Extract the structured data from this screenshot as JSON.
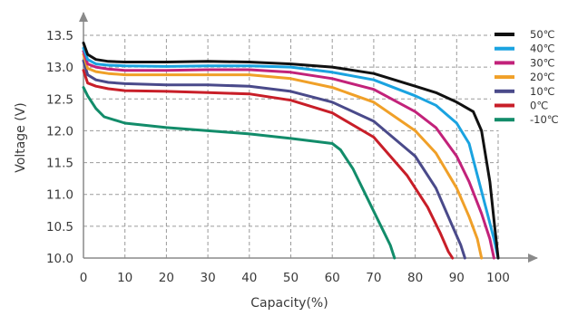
{
  "chart_data": {
    "type": "line",
    "title": "",
    "xlabel": "Capacity(%)",
    "ylabel": "Voltage (V)",
    "xlim": [
      0,
      100
    ],
    "ylim": [
      10.0,
      13.5
    ],
    "x_ticks": [
      "0",
      "10",
      "20",
      "30",
      "40",
      "50",
      "60",
      "70",
      "80",
      "90",
      "100"
    ],
    "y_ticks": [
      "10.0",
      "10.5",
      "11.0",
      "11.5",
      "12.0",
      "12.5",
      "13.0",
      "13.5"
    ],
    "grid": true,
    "legend_position": "top-right",
    "series": [
      {
        "name": "50℃",
        "color": "#111111",
        "points": [
          [
            0,
            13.38
          ],
          [
            1,
            13.2
          ],
          [
            3,
            13.12
          ],
          [
            6,
            13.09
          ],
          [
            10,
            13.08
          ],
          [
            20,
            13.08
          ],
          [
            30,
            13.09
          ],
          [
            40,
            13.08
          ],
          [
            50,
            13.05
          ],
          [
            60,
            13.0
          ],
          [
            70,
            12.9
          ],
          [
            80,
            12.7
          ],
          [
            85,
            12.6
          ],
          [
            90,
            12.45
          ],
          [
            94,
            12.3
          ],
          [
            96,
            12.0
          ],
          [
            98,
            11.2
          ],
          [
            99,
            10.6
          ],
          [
            100,
            10.0
          ]
        ]
      },
      {
        "name": "40℃",
        "color": "#1aa3e0",
        "points": [
          [
            0,
            13.3
          ],
          [
            1,
            13.12
          ],
          [
            3,
            13.05
          ],
          [
            6,
            13.03
          ],
          [
            10,
            13.02
          ],
          [
            20,
            13.01
          ],
          [
            30,
            13.02
          ],
          [
            40,
            13.02
          ],
          [
            50,
            13.0
          ],
          [
            60,
            12.92
          ],
          [
            70,
            12.8
          ],
          [
            80,
            12.55
          ],
          [
            85,
            12.4
          ],
          [
            90,
            12.12
          ],
          [
            93,
            11.8
          ],
          [
            95,
            11.3
          ],
          [
            97,
            10.8
          ],
          [
            99,
            10.3
          ],
          [
            100,
            10.0
          ]
        ]
      },
      {
        "name": "30℃",
        "color": "#c2227a",
        "points": [
          [
            0,
            13.25
          ],
          [
            1,
            13.05
          ],
          [
            3,
            13.0
          ],
          [
            6,
            12.97
          ],
          [
            10,
            12.95
          ],
          [
            20,
            12.95
          ],
          [
            30,
            12.96
          ],
          [
            40,
            12.96
          ],
          [
            50,
            12.92
          ],
          [
            60,
            12.82
          ],
          [
            70,
            12.65
          ],
          [
            80,
            12.3
          ],
          [
            85,
            12.05
          ],
          [
            90,
            11.6
          ],
          [
            93,
            11.2
          ],
          [
            96,
            10.7
          ],
          [
            98,
            10.3
          ],
          [
            99,
            10.0
          ]
        ]
      },
      {
        "name": "20℃",
        "color": "#f0a028",
        "points": [
          [
            0,
            13.2
          ],
          [
            1,
            12.98
          ],
          [
            3,
            12.93
          ],
          [
            6,
            12.9
          ],
          [
            10,
            12.88
          ],
          [
            20,
            12.88
          ],
          [
            30,
            12.88
          ],
          [
            40,
            12.88
          ],
          [
            50,
            12.82
          ],
          [
            60,
            12.68
          ],
          [
            70,
            12.45
          ],
          [
            80,
            12.0
          ],
          [
            85,
            11.65
          ],
          [
            90,
            11.1
          ],
          [
            93,
            10.65
          ],
          [
            95,
            10.3
          ],
          [
            96,
            10.0
          ]
        ]
      },
      {
        "name": "10℃",
        "color": "#4a4a8a",
        "points": [
          [
            0,
            13.1
          ],
          [
            1,
            12.88
          ],
          [
            3,
            12.8
          ],
          [
            6,
            12.76
          ],
          [
            10,
            12.74
          ],
          [
            20,
            12.72
          ],
          [
            30,
            12.72
          ],
          [
            40,
            12.7
          ],
          [
            50,
            12.62
          ],
          [
            60,
            12.45
          ],
          [
            70,
            12.15
          ],
          [
            80,
            11.6
          ],
          [
            85,
            11.1
          ],
          [
            89,
            10.5
          ],
          [
            91,
            10.2
          ],
          [
            92,
            10.0
          ]
        ]
      },
      {
        "name": "0℃",
        "color": "#c81e28",
        "points": [
          [
            0,
            12.95
          ],
          [
            1,
            12.75
          ],
          [
            3,
            12.7
          ],
          [
            6,
            12.66
          ],
          [
            10,
            12.63
          ],
          [
            20,
            12.62
          ],
          [
            30,
            12.6
          ],
          [
            40,
            12.58
          ],
          [
            50,
            12.48
          ],
          [
            60,
            12.28
          ],
          [
            70,
            11.9
          ],
          [
            78,
            11.3
          ],
          [
            83,
            10.8
          ],
          [
            86,
            10.4
          ],
          [
            88,
            10.1
          ],
          [
            89,
            10.0
          ]
        ]
      },
      {
        "name": "-10℃",
        "color": "#128c6a",
        "points": [
          [
            0,
            12.68
          ],
          [
            1,
            12.55
          ],
          [
            3,
            12.35
          ],
          [
            5,
            12.22
          ],
          [
            10,
            12.12
          ],
          [
            20,
            12.05
          ],
          [
            30,
            12.0
          ],
          [
            40,
            11.95
          ],
          [
            50,
            11.88
          ],
          [
            60,
            11.8
          ],
          [
            62,
            11.7
          ],
          [
            65,
            11.4
          ],
          [
            68,
            11.0
          ],
          [
            71,
            10.6
          ],
          [
            74,
            10.2
          ],
          [
            75,
            10.0
          ]
        ]
      }
    ]
  }
}
